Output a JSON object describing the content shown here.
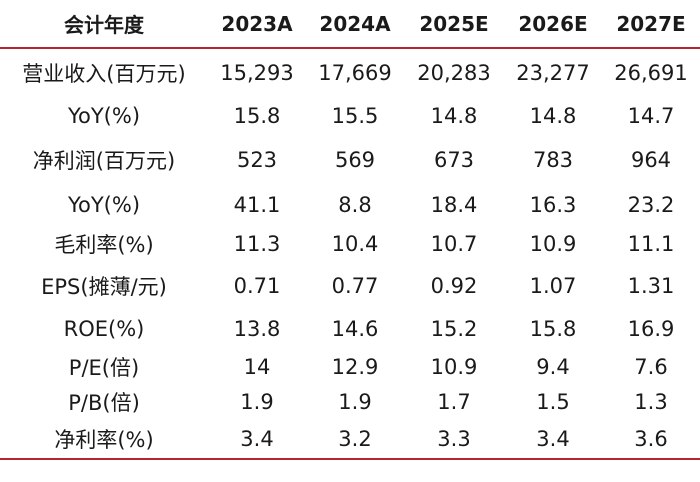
{
  "table": {
    "header": [
      "会计年度",
      "2023A",
      "2024A",
      "2025E",
      "2026E",
      "2027E"
    ],
    "rows": [
      {
        "label": "营业收入(百万元)",
        "values": [
          "15,293",
          "17,669",
          "20,283",
          "23,277",
          "26,691"
        ]
      },
      {
        "label": "YoY(%)",
        "values": [
          "15.8",
          "15.5",
          "14.8",
          "14.8",
          "14.7"
        ]
      },
      {
        "label": "净利润(百万元)",
        "values": [
          "523",
          "569",
          "673",
          "783",
          "964"
        ]
      },
      {
        "label": "YoY(%)",
        "values": [
          "41.1",
          "8.8",
          "18.4",
          "16.3",
          "23.2"
        ]
      },
      {
        "label": "毛利率(%)",
        "values": [
          "11.3",
          "10.4",
          "10.7",
          "10.9",
          "11.1"
        ]
      },
      {
        "label": "EPS(摊薄/元)",
        "values": [
          "0.71",
          "0.77",
          "0.92",
          "1.07",
          "1.31"
        ]
      },
      {
        "label": "ROE(%)",
        "values": [
          "13.8",
          "14.6",
          "15.2",
          "15.8",
          "16.9"
        ]
      },
      {
        "label": "P/E(倍)",
        "values": [
          "14",
          "12.9",
          "10.9",
          "9.4",
          "7.6"
        ]
      },
      {
        "label": "P/B(倍)",
        "values": [
          "1.9",
          "1.9",
          "1.7",
          "1.5",
          "1.3"
        ]
      },
      {
        "label": "净利率(%)",
        "values": [
          "3.4",
          "3.2",
          "3.3",
          "3.4",
          "3.6"
        ]
      }
    ]
  },
  "colors": {
    "rule": "#b5242f",
    "text": "#1a1a1a"
  }
}
